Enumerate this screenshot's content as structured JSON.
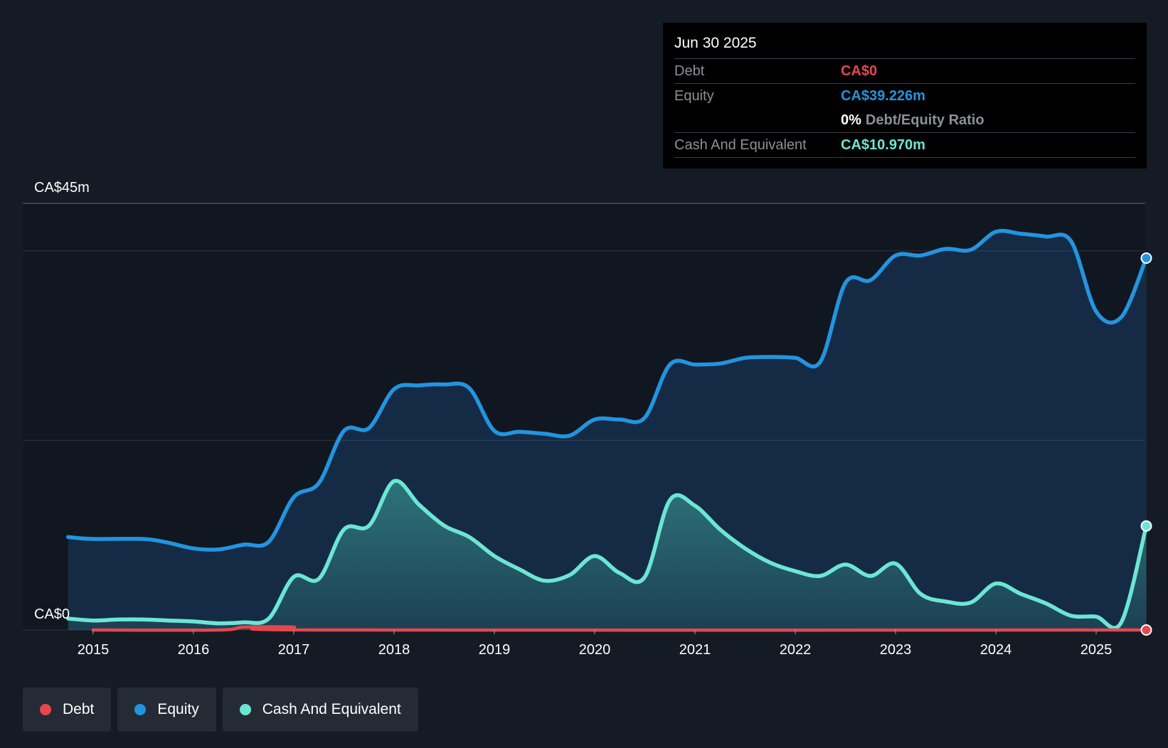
{
  "tooltip": {
    "date": "Jun 30 2025",
    "debt_label": "Debt",
    "debt_value": "CA$0",
    "equity_label": "Equity",
    "equity_value": "CA$39.226m",
    "ratio_value": "0%",
    "ratio_label": "Debt/Equity Ratio",
    "cash_label": "Cash And Equivalent",
    "cash_value": "CA$10.970m"
  },
  "legend": {
    "debt": "Debt",
    "equity": "Equity",
    "cash": "Cash And Equivalent"
  },
  "colors": {
    "background": "#151b24",
    "debt": "#e5474e",
    "equity": "#2394df",
    "cash": "#6ce6d4"
  },
  "chart_data": {
    "type": "area",
    "title": "",
    "y_top_label": "CA$45m",
    "y_bottom_label": "CA$0",
    "ylim": [
      0,
      45
    ],
    "xlim": [
      2014.75,
      2025.5
    ],
    "gridlines": [
      0,
      20,
      40,
      45
    ],
    "x_ticks": [
      "2015",
      "2016",
      "2017",
      "2018",
      "2019",
      "2020",
      "2021",
      "2022",
      "2023",
      "2024",
      "2025"
    ],
    "series": [
      {
        "name": "Equity",
        "points": [
          [
            2014.75,
            9.8
          ],
          [
            2015.0,
            9.6
          ],
          [
            2015.5,
            9.6
          ],
          [
            2015.75,
            9.2
          ],
          [
            2016.0,
            8.6
          ],
          [
            2016.25,
            8.5
          ],
          [
            2016.5,
            9.0
          ],
          [
            2016.75,
            9.3
          ],
          [
            2017.0,
            14.0
          ],
          [
            2017.25,
            15.5
          ],
          [
            2017.5,
            21.0
          ],
          [
            2017.75,
            21.3
          ],
          [
            2018.0,
            25.4
          ],
          [
            2018.25,
            25.8
          ],
          [
            2018.5,
            25.9
          ],
          [
            2018.75,
            25.5
          ],
          [
            2019.0,
            21.0
          ],
          [
            2019.25,
            20.9
          ],
          [
            2019.5,
            20.7
          ],
          [
            2019.75,
            20.5
          ],
          [
            2020.0,
            22.2
          ],
          [
            2020.25,
            22.2
          ],
          [
            2020.5,
            22.4
          ],
          [
            2020.75,
            28.0
          ],
          [
            2021.0,
            28.0
          ],
          [
            2021.25,
            28.1
          ],
          [
            2021.5,
            28.7
          ],
          [
            2021.75,
            28.8
          ],
          [
            2022.0,
            28.7
          ],
          [
            2022.25,
            28.3
          ],
          [
            2022.5,
            36.6
          ],
          [
            2022.75,
            36.9
          ],
          [
            2023.0,
            39.5
          ],
          [
            2023.25,
            39.5
          ],
          [
            2023.5,
            40.2
          ],
          [
            2023.75,
            40.1
          ],
          [
            2024.0,
            42.0
          ],
          [
            2024.25,
            41.8
          ],
          [
            2024.5,
            41.5
          ],
          [
            2024.75,
            41.0
          ],
          [
            2025.0,
            33.6
          ],
          [
            2025.25,
            33.0
          ],
          [
            2025.5,
            39.226
          ]
        ]
      },
      {
        "name": "Cash And Equivalent",
        "points": [
          [
            2014.75,
            1.2
          ],
          [
            2015.0,
            1.0
          ],
          [
            2015.25,
            1.1
          ],
          [
            2015.5,
            1.1
          ],
          [
            2015.75,
            1.0
          ],
          [
            2016.0,
            0.9
          ],
          [
            2016.25,
            0.7
          ],
          [
            2016.5,
            0.8
          ],
          [
            2016.75,
            1.2
          ],
          [
            2017.0,
            5.6
          ],
          [
            2017.25,
            5.4
          ],
          [
            2017.5,
            10.6
          ],
          [
            2017.75,
            11.0
          ],
          [
            2018.0,
            15.7
          ],
          [
            2018.25,
            13.2
          ],
          [
            2018.5,
            11.0
          ],
          [
            2018.75,
            9.8
          ],
          [
            2019.0,
            7.8
          ],
          [
            2019.25,
            6.4
          ],
          [
            2019.5,
            5.2
          ],
          [
            2019.75,
            5.8
          ],
          [
            2020.0,
            7.8
          ],
          [
            2020.25,
            6.0
          ],
          [
            2020.5,
            5.6
          ],
          [
            2020.75,
            13.7
          ],
          [
            2021.0,
            13.1
          ],
          [
            2021.25,
            10.6
          ],
          [
            2021.5,
            8.6
          ],
          [
            2021.75,
            7.1
          ],
          [
            2022.0,
            6.2
          ],
          [
            2022.25,
            5.7
          ],
          [
            2022.5,
            6.9
          ],
          [
            2022.75,
            5.7
          ],
          [
            2023.0,
            7.0
          ],
          [
            2023.25,
            3.8
          ],
          [
            2023.5,
            3.0
          ],
          [
            2023.75,
            2.9
          ],
          [
            2024.0,
            4.9
          ],
          [
            2024.25,
            3.8
          ],
          [
            2024.5,
            2.8
          ],
          [
            2024.75,
            1.5
          ],
          [
            2025.0,
            1.4
          ],
          [
            2025.25,
            0.8
          ],
          [
            2025.5,
            10.97
          ]
        ]
      },
      {
        "name": "Debt",
        "points": [
          [
            2015.0,
            0.0
          ],
          [
            2016.25,
            0.0
          ],
          [
            2016.5,
            0.3
          ],
          [
            2017.0,
            0.3
          ],
          [
            2017.25,
            0.0
          ],
          [
            2025.5,
            0.0
          ]
        ]
      }
    ]
  }
}
